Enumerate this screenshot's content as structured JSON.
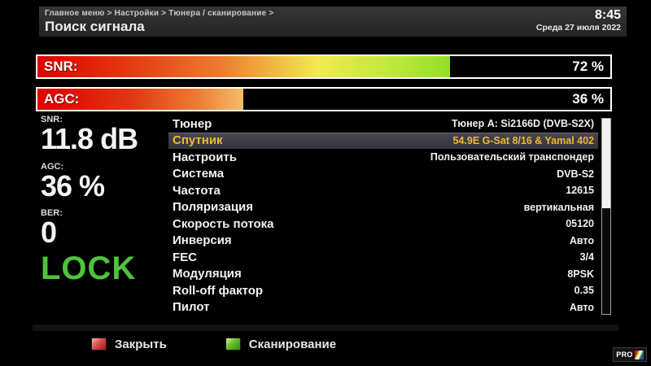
{
  "header": {
    "breadcrumb": "Главное меню > Настройки > Тюнера / сканирование >",
    "title": "Поиск сигнала",
    "time": "8:45",
    "date": "Среда 27 июля 2022"
  },
  "signal_bars": [
    {
      "id": "snr",
      "label": "SNR:",
      "value_text": "72 %",
      "percent": 72
    },
    {
      "id": "agc",
      "label": "AGC:",
      "value_text": "36 %",
      "percent": 36
    }
  ],
  "stats": [
    {
      "label": "SNR:",
      "value": "11.8 dB"
    },
    {
      "label": "AGC:",
      "value": "36 %"
    },
    {
      "label": "BER:",
      "value": "0"
    }
  ],
  "lock_status": "LOCK",
  "settings": {
    "items": [
      {
        "label": "Тюнер",
        "value": "Тюнер A: Si2166D (DVB-S2X)",
        "selected": false
      },
      {
        "label": "Спутник",
        "value": "54.9E G-Sat 8/16 & Yamal 402",
        "selected": true
      },
      {
        "label": "Настроить",
        "value": "Пользовательский транспондер",
        "selected": false
      },
      {
        "label": "Система",
        "value": "DVB-S2",
        "selected": false
      },
      {
        "label": "Частота",
        "value": "12615",
        "selected": false
      },
      {
        "label": "Поляризация",
        "value": "вертикальная",
        "selected": false
      },
      {
        "label": "Скорость потока",
        "value": "05120",
        "selected": false
      },
      {
        "label": "Инверсия",
        "value": "Авто",
        "selected": false
      },
      {
        "label": "FEC",
        "value": "3/4",
        "selected": false
      },
      {
        "label": "Модуляция",
        "value": "8PSK",
        "selected": false
      },
      {
        "label": "Roll-off фактор",
        "value": "0.35",
        "selected": false
      },
      {
        "label": "Пилот",
        "value": "Авто",
        "selected": false
      }
    ]
  },
  "footer": {
    "buttons": [
      {
        "color": "red",
        "label": "Закрыть"
      },
      {
        "color": "green",
        "label": "Сканирование"
      }
    ]
  },
  "watermark": {
    "text": "PRO"
  },
  "colors": {
    "accent_gold": "#f0b831",
    "lock_green": "#4ec43c",
    "bar_red": "#df0000",
    "bar_green_end": "#93de2a",
    "bar_orange_end": "#f5bc67",
    "key_red": "#a81212",
    "key_green": "#2f8c12"
  }
}
